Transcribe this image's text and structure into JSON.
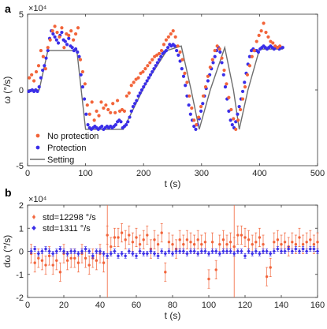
{
  "chart_data": [
    {
      "id": "a",
      "panel_letter": "a",
      "type": "scatter",
      "xlabel": "t (s)",
      "ylabel": "ω (°/s)",
      "y_exponent": "×10⁴",
      "xlim": [
        0,
        500
      ],
      "ylim": [
        -5,
        5
      ],
      "xticks": [
        "0",
        "100",
        "200",
        "300",
        "400",
        "500"
      ],
      "yticks": [
        "-5",
        "0",
        "5"
      ],
      "grid": false,
      "legend_position": "bottom-left",
      "colors": {
        "no_protection": "#f2643a",
        "protection": "#3a2ee8",
        "setting": "#6e6e6e"
      },
      "series": [
        {
          "name": "Setting",
          "kind": "line",
          "x": [
            0,
            20,
            35,
            85,
            100,
            130,
            165,
            205,
            240,
            265,
            282,
            296,
            315,
            340,
            355,
            365,
            380,
            400,
            440
          ],
          "y": [
            0,
            0,
            2.6,
            2.6,
            -2.6,
            -2.6,
            -2.6,
            0.5,
            2.6,
            2.9,
            0,
            -2.6,
            0,
            2.8,
            0,
            -2.6,
            0,
            2.7,
            2.7
          ]
        },
        {
          "name": "Protection",
          "kind": "scatter",
          "x": [
            2,
            5,
            8,
            11,
            14,
            17,
            20,
            23,
            26,
            29,
            32,
            35,
            38,
            41,
            44,
            47,
            50,
            53,
            56,
            59,
            62,
            65,
            68,
            71,
            74,
            77,
            80,
            83,
            86,
            89,
            92,
            95,
            98,
            101,
            104,
            107,
            110,
            113,
            116,
            119,
            122,
            125,
            128,
            131,
            134,
            137,
            140,
            143,
            146,
            149,
            152,
            155,
            158,
            161,
            164,
            167,
            170,
            173,
            176,
            179,
            182,
            185,
            188,
            191,
            194,
            197,
            200,
            203,
            206,
            209,
            212,
            215,
            218,
            221,
            224,
            227,
            230,
            233,
            236,
            239,
            242,
            245,
            248,
            251,
            254,
            257,
            260,
            263,
            266,
            269,
            272,
            275,
            278,
            281,
            284,
            287,
            290,
            293,
            296,
            299,
            302,
            305,
            308,
            311,
            314,
            317,
            320,
            323,
            326,
            329,
            332,
            335,
            338,
            341,
            344,
            347,
            350,
            353,
            356,
            359,
            362,
            365,
            368,
            371,
            374,
            377,
            380,
            383,
            386,
            389,
            392,
            395,
            398,
            401,
            404,
            407,
            410,
            413,
            416,
            419,
            422,
            425,
            428,
            431,
            434,
            437,
            440
          ],
          "y": [
            -0.1,
            -0.05,
            0,
            -0.1,
            0,
            -0.1,
            0.2,
            0.8,
            1.3,
            1.6,
            2.1,
            2.6,
            3.4,
            3.9,
            3.7,
            3.5,
            3.3,
            3.1,
            3.6,
            3.8,
            3.3,
            3.2,
            3.0,
            3.4,
            2.9,
            2.8,
            2.6,
            2.7,
            2.5,
            2.2,
            1.0,
            0.2,
            -0.6,
            -1.6,
            -2.3,
            -2.5,
            -2.6,
            -2.5,
            -2.4,
            -2.5,
            -2.6,
            -2.5,
            -2.4,
            -2.6,
            -2.5,
            -2.4,
            -2.5,
            -2.4,
            -2.5,
            -2.4,
            -2.3,
            -2.1,
            -2.0,
            -2.1,
            -2.5,
            -2.4,
            -2.3,
            -2.1,
            -1.8,
            -1.4,
            -1.1,
            -0.9,
            -0.7,
            -0.4,
            -0.2,
            0.0,
            0.2,
            0.4,
            0.6,
            0.8,
            1.0,
            1.2,
            1.4,
            1.6,
            1.8,
            2.0,
            2.2,
            2.4,
            2.5,
            2.6,
            2.8,
            3.0,
            2.9,
            3.0,
            2.9,
            2.6,
            2.3,
            1.9,
            1.4,
            0.9,
            0.3,
            -0.4,
            -1.0,
            -1.6,
            -2.0,
            -2.4,
            -2.6,
            -2.3,
            -1.9,
            -1.4,
            -0.9,
            -0.4,
            0.1,
            0.6,
            1.0,
            1.4,
            1.8,
            2.2,
            2.6,
            2.8,
            2.5,
            1.8,
            1.0,
            0.2,
            -0.6,
            -1.4,
            -2.0,
            -2.3,
            -2.5,
            -2.1,
            -1.6,
            -1.1,
            -0.6,
            -0.1,
            0.5,
            1.1,
            1.7,
            2.2,
            2.6,
            2.7,
            2.6,
            2.6,
            2.5,
            2.7,
            2.8,
            2.9,
            2.8,
            2.7,
            2.8,
            2.9,
            2.8,
            2.7,
            2.8,
            2.8,
            2.7,
            2.8,
            2.8
          ]
        },
        {
          "name": "No protection",
          "kind": "scatter",
          "x": [
            3,
            7,
            11,
            15,
            19,
            23,
            27,
            31,
            35,
            39,
            43,
            47,
            51,
            55,
            59,
            63,
            67,
            71,
            75,
            79,
            83,
            87,
            91,
            95,
            99,
            103,
            107,
            111,
            115,
            119,
            123,
            127,
            131,
            135,
            139,
            143,
            147,
            151,
            155,
            159,
            163,
            167,
            171,
            175,
            179,
            183,
            187,
            191,
            195,
            199,
            203,
            207,
            211,
            215,
            219,
            223,
            227,
            231,
            235,
            239,
            243,
            247,
            251,
            255,
            259,
            263,
            267,
            271,
            275,
            279,
            283,
            287,
            291,
            295,
            299,
            303,
            307,
            311,
            315,
            319,
            323,
            327,
            331,
            335,
            339,
            343,
            347,
            351,
            355,
            359,
            363,
            367,
            371,
            375,
            379,
            383,
            387,
            391,
            395,
            399,
            403,
            407,
            411,
            415,
            419,
            423,
            427,
            431,
            435
          ],
          "y": [
            0.8,
            1.0,
            0.6,
            1.2,
            1.6,
            2.6,
            2.2,
            1.4,
            2.8,
            3.3,
            3.9,
            4.2,
            3.8,
            3.5,
            4.1,
            2.8,
            3.7,
            3.6,
            3.9,
            3.3,
            3.7,
            4.1,
            2.0,
            1.2,
            0.4,
            -1.0,
            -1.6,
            -0.8,
            -2.0,
            -1.4,
            -1.7,
            -0.8,
            -1.2,
            -1.0,
            -1.3,
            -1.5,
            -0.9,
            -1.5,
            -0.7,
            -1.4,
            -1.3,
            -1.4,
            -0.4,
            -0.2,
            0.3,
            0.5,
            0.7,
            0.8,
            1.1,
            1.2,
            1.4,
            1.6,
            1.8,
            2.0,
            2.2,
            2.3,
            2.4,
            2.6,
            3.0,
            3.3,
            3.5,
            3.7,
            3.9,
            3.5,
            2.9,
            2.5,
            2.0,
            1.1,
            0.5,
            -0.4,
            -1.2,
            -2.0,
            -2.3,
            -1.8,
            -1.1,
            -0.4,
            0.2,
            0.9,
            1.5,
            2.0,
            2.6,
            2.9,
            2.7,
            2.1,
            1.3,
            0.4,
            -0.5,
            -1.3,
            -1.9,
            -2.6,
            -2.0,
            -1.3,
            -0.6,
            0.2,
            1.0,
            1.6,
            2.2,
            2.6,
            3.2,
            3.6,
            3.9,
            4.4,
            3.8,
            3.5,
            3.2,
            3.1,
            2.9,
            2.8,
            2.9
          ]
        }
      ],
      "labels": {
        "setting": "Setting",
        "protection": "Protection",
        "no_protection": "No protection"
      }
    },
    {
      "id": "b",
      "panel_letter": "b",
      "type": "scatter",
      "xlabel": "t (s)",
      "ylabel": "dω (°/s)",
      "y_exponent": "×10⁴",
      "xlim": [
        0,
        160
      ],
      "ylim": [
        -2,
        2
      ],
      "xticks": [
        "0",
        "20",
        "40",
        "60",
        "80",
        "100",
        "120",
        "140",
        "160"
      ],
      "yticks": [
        "-2",
        "-1",
        "0",
        "1",
        "2"
      ],
      "grid": false,
      "legend_position": "top-left",
      "colors": {
        "no_protection": "#f2643a",
        "protection": "#3a2ee8"
      },
      "legend": {
        "no_protection": "std=12298 °/s",
        "protection": "std=1311 °/s"
      },
      "spikes_x": [
        44,
        114
      ],
      "series": [
        {
          "name": "std=12298 °/s",
          "kind": "errorbar",
          "x": [
            2,
            4,
            6,
            8,
            10,
            12,
            14,
            16,
            18,
            20,
            22,
            24,
            26,
            28,
            30,
            32,
            34,
            36,
            38,
            40,
            42,
            44,
            46,
            48,
            50,
            52,
            54,
            56,
            58,
            60,
            62,
            64,
            66,
            68,
            70,
            72,
            74,
            76,
            78,
            80,
            82,
            84,
            86,
            88,
            90,
            92,
            94,
            96,
            98,
            100,
            102,
            104,
            106,
            108,
            110,
            112,
            114,
            116,
            118,
            120,
            122,
            124,
            126,
            128,
            130,
            132,
            134,
            136,
            138,
            140,
            142,
            144,
            146,
            148,
            150,
            152,
            154,
            156,
            158,
            160
          ],
          "y": [
            -0.1,
            -0.5,
            -0.3,
            -0.4,
            -0.6,
            -0.2,
            -0.6,
            -0.4,
            -0.9,
            -0.1,
            -0.4,
            -0.3,
            -0.3,
            -0.5,
            -0.1,
            -0.3,
            -0.6,
            -0.3,
            -0.4,
            -0.1,
            -0.5,
            0.7,
            0.2,
            0.6,
            0.6,
            0.8,
            0.5,
            0.7,
            0.4,
            0.6,
            0.3,
            0.5,
            0.7,
            0.1,
            0.5,
            0.3,
            0.8,
            -0.9,
            0.4,
            0.3,
            0.1,
            0.5,
            0.3,
            0.5,
            0.4,
            0.3,
            0.5,
            0.3,
            0.4,
            -1.2,
            0.4,
            -0.8,
            0.3,
            0.5,
            0.3,
            0.4,
            0.2,
            0.7,
            0.7,
            0.6,
            0.5,
            0.3,
            0.4,
            0.6,
            0.3,
            -1.1,
            -0.7,
            0.4,
            0.5,
            0.3,
            0.4,
            0.2,
            0.4,
            0.3,
            0.6,
            0.3,
            0.4,
            0.5,
            0.3,
            0.4
          ],
          "err": [
            0.4,
            0.4,
            0.4,
            0.4,
            0.4,
            0.4,
            0.4,
            0.4,
            0.4,
            0.4,
            0.4,
            0.4,
            0.4,
            0.4,
            0.4,
            0.4,
            0.4,
            0.4,
            0.4,
            0.4,
            0.4,
            0.4,
            0.4,
            0.4,
            0.4,
            0.4,
            0.4,
            0.4,
            0.4,
            0.4,
            0.4,
            0.4,
            0.4,
            0.4,
            0.4,
            0.4,
            0.4,
            0.4,
            0.4,
            0.4,
            0.4,
            0.4,
            0.4,
            0.4,
            0.4,
            0.4,
            0.4,
            0.4,
            0.4,
            0.4,
            0.4,
            0.4,
            0.4,
            0.4,
            0.4,
            0.4,
            0.4,
            0.4,
            0.4,
            0.4,
            0.4,
            0.4,
            0.4,
            0.4,
            0.4,
            0.4,
            0.4,
            0.4,
            0.4,
            0.4,
            0.4,
            0.4,
            0.4,
            0.4,
            0.4,
            0.4,
            0.4,
            0.4,
            0.4,
            0.4
          ]
        },
        {
          "name": "std=1311 °/s",
          "kind": "errorbar",
          "x": [
            2,
            4,
            6,
            8,
            10,
            12,
            14,
            16,
            18,
            20,
            22,
            24,
            26,
            28,
            30,
            32,
            34,
            36,
            38,
            40,
            42,
            44,
            46,
            48,
            50,
            52,
            54,
            56,
            58,
            60,
            62,
            64,
            66,
            68,
            70,
            72,
            74,
            76,
            78,
            80,
            82,
            84,
            86,
            88,
            90,
            92,
            94,
            96,
            98,
            100,
            102,
            104,
            106,
            108,
            110,
            112,
            114,
            116,
            118,
            120,
            122,
            124,
            126,
            128,
            130,
            132,
            134,
            136,
            138,
            140,
            142,
            144,
            146,
            148,
            150,
            152,
            154,
            156,
            158,
            160
          ],
          "y": [
            0.0,
            0.1,
            -0.1,
            0.0,
            0.1,
            0.0,
            -0.1,
            0.0,
            0.1,
            0.0,
            -0.1,
            0.0,
            0.0,
            -0.1,
            0.0,
            0.1,
            0.0,
            -0.2,
            0.0,
            0.0,
            -0.1,
            -0.2,
            -0.1,
            0.0,
            -0.2,
            -0.1,
            -0.2,
            0.0,
            -0.1,
            -0.2,
            0.0,
            -0.1,
            -0.1,
            0.0,
            -0.1,
            -0.2,
            0.0,
            -0.1,
            0.0,
            -0.1,
            0.0,
            0.0,
            0.0,
            -0.1,
            0.0,
            0.0,
            -0.1,
            0.0,
            0.0,
            -0.1,
            0.0,
            0.0,
            -0.1,
            0.0,
            0.0,
            0.0,
            -0.1,
            0.0,
            0.0,
            -0.2,
            0.0,
            -0.1,
            0.0,
            -0.1,
            0.0,
            0.0,
            -0.1,
            0.0,
            0.1,
            0.0,
            0.0,
            0.1,
            0.0,
            0.1,
            0.0,
            0.1,
            0.0,
            0.1,
            0.1,
            0.0
          ],
          "err": [
            0.1,
            0.1,
            0.1,
            0.1,
            0.1,
            0.1,
            0.1,
            0.1,
            0.1,
            0.1,
            0.1,
            0.1,
            0.1,
            0.1,
            0.1,
            0.1,
            0.1,
            0.1,
            0.1,
            0.1,
            0.1,
            0.1,
            0.1,
            0.1,
            0.1,
            0.1,
            0.1,
            0.1,
            0.1,
            0.1,
            0.1,
            0.1,
            0.1,
            0.1,
            0.1,
            0.1,
            0.1,
            0.1,
            0.1,
            0.1,
            0.1,
            0.1,
            0.1,
            0.1,
            0.1,
            0.1,
            0.1,
            0.1,
            0.1,
            0.1,
            0.1,
            0.1,
            0.1,
            0.1,
            0.1,
            0.1,
            0.1,
            0.1,
            0.1,
            0.1,
            0.1,
            0.1,
            0.1,
            0.1,
            0.1,
            0.1,
            0.1,
            0.1,
            0.1,
            0.1,
            0.1,
            0.1,
            0.1,
            0.1,
            0.1,
            0.1,
            0.1,
            0.1,
            0.1,
            0.1
          ]
        }
      ]
    }
  ]
}
